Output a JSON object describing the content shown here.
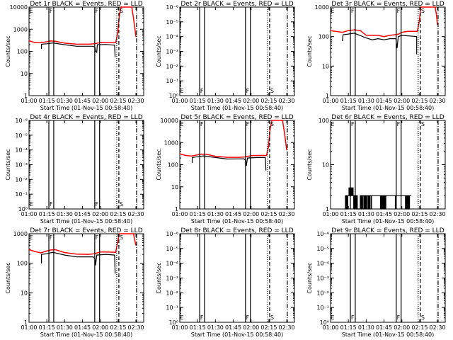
{
  "colors": {
    "events": "#000000",
    "lld": "#ff0000",
    "axes": "#000000",
    "background": "#ffffff"
  },
  "common": {
    "xlabel": "Start Time (01-Nov-15 00:58:40)",
    "ylabel": "Counts/sec",
    "xticks": [
      {
        "min": 0,
        "label": "01:00"
      },
      {
        "min": 15,
        "label": "01:15"
      },
      {
        "min": 30,
        "label": "01:30"
      },
      {
        "min": 45,
        "label": "01:45"
      },
      {
        "min": 60,
        "label": "02:00"
      },
      {
        "min": 75,
        "label": "02:15"
      },
      {
        "min": 90,
        "label": "02:30"
      }
    ],
    "xlim_minutes_after_0100": [
      0,
      96.5
    ],
    "vlines": [
      {
        "min": 16.7,
        "style": "solid"
      },
      {
        "min": 20.8,
        "style": "solid"
      },
      {
        "min": 55.3,
        "style": "solid"
      },
      {
        "min": 59.4,
        "style": "solid"
      },
      {
        "min": 73.8,
        "style": "dotted"
      },
      {
        "min": 75.6,
        "style": "dashed"
      },
      {
        "min": 90.5,
        "style": "dashdot"
      }
    ],
    "markers": [
      {
        "min": 0.3,
        "label": "E"
      },
      {
        "min": 17.2,
        "label": "F"
      },
      {
        "min": 55.8,
        "label": "F"
      },
      {
        "min": 76.2,
        "label": "S"
      }
    ]
  },
  "chart_data": [
    {
      "type": "line",
      "title": "Det 1r BLACK = Events, RED = LLD",
      "ylog_decades": [
        0,
        4
      ],
      "yticks": [
        "1",
        "10",
        "100",
        "1000",
        "10000"
      ],
      "marker_pos": "top",
      "series": [
        {
          "name": "LLD",
          "color": "red",
          "points": [
            [
              0,
              300
            ],
            [
              5,
              250
            ],
            [
              10,
              245
            ],
            [
              15,
              270
            ],
            [
              18,
              295
            ],
            [
              22,
              285
            ],
            [
              30,
              235
            ],
            [
              40,
              210
            ],
            [
              50,
              210
            ],
            [
              55,
              220
            ],
            [
              60,
              250
            ],
            [
              65,
              245
            ],
            [
              73,
              250
            ],
            [
              74.5,
              600
            ],
            [
              76,
              4000
            ],
            [
              77.5,
              10000
            ],
            [
              86.5,
              10000
            ],
            [
              88,
              3000
            ],
            [
              90,
              450
            ]
          ]
        },
        {
          "name": "Events",
          "color": "black",
          "points": [
            [
              10.5,
              130
            ],
            [
              10.5,
              210
            ],
            [
              15,
              220
            ],
            [
              20,
              240
            ],
            [
              30,
              200
            ],
            [
              40,
              170
            ],
            [
              54,
              170
            ],
            [
              55.5,
              150
            ],
            [
              56,
              100
            ],
            [
              57,
              90
            ],
            [
              57.5,
              200
            ],
            [
              65,
              205
            ],
            [
              72,
              190
            ],
            [
              72.5,
              55
            ]
          ]
        }
      ]
    },
    {
      "type": "line",
      "title": "Det 2r BLACK = Events, RED = LLD",
      "ylog_decades": [
        0,
        6
      ],
      "yticks": [
        "10⁰",
        "10⁻¹",
        "10⁻²",
        "10⁻³",
        "10⁻⁴",
        "10⁻⁵",
        "10⁻⁶"
      ],
      "marker_pos": "bottom",
      "series": []
    },
    {
      "type": "line",
      "title": "Det 3r BLACK = Events, RED = LLD",
      "ylog_decades": [
        0,
        3
      ],
      "yticks": [
        "1",
        "10",
        "100",
        "1000"
      ],
      "marker_pos": "top",
      "series": [
        {
          "name": "LLD",
          "color": "red",
          "points": [
            [
              0,
              160
            ],
            [
              10,
              140
            ],
            [
              15,
              160
            ],
            [
              20,
              170
            ],
            [
              25,
              160
            ],
            [
              30,
              110
            ],
            [
              40,
              110
            ],
            [
              45,
              100
            ],
            [
              50,
              110
            ],
            [
              57,
              120
            ],
            [
              60,
              140
            ],
            [
              65,
              150
            ],
            [
              73,
              150
            ],
            [
              74.5,
              300
            ],
            [
              76,
              1000
            ],
            [
              88,
              1000
            ],
            [
              89,
              600
            ],
            [
              90,
              250
            ]
          ]
        },
        {
          "name": "Events",
          "color": "black",
          "points": [
            [
              10,
              70
            ],
            [
              10.5,
              115
            ],
            [
              20,
              130
            ],
            [
              30,
              90
            ],
            [
              35,
              78
            ],
            [
              40,
              85
            ],
            [
              45,
              78
            ],
            [
              50,
              85
            ],
            [
              55,
              85
            ],
            [
              56,
              40
            ],
            [
              57,
              100
            ],
            [
              60,
              110
            ],
            [
              72.5,
              100
            ],
            [
              72.5,
              25
            ]
          ]
        }
      ]
    },
    {
      "type": "line",
      "title": "Det 4r BLACK = Events, RED = LLD",
      "ylog_decades": [
        0,
        6
      ],
      "yticks": [
        "10⁰",
        "10⁻¹",
        "10⁻²",
        "10⁻³",
        "10⁻⁴",
        "10⁻⁵",
        "10⁻⁶"
      ],
      "marker_pos": "bottom",
      "series": []
    },
    {
      "type": "line",
      "title": "Det 5r BLACK = Events, RED = LLD",
      "ylog_decades": [
        0,
        4
      ],
      "yticks": [
        "1",
        "10",
        "100",
        "1000",
        "10000"
      ],
      "marker_pos": "top",
      "series": [
        {
          "name": "LLD",
          "color": "red",
          "points": [
            [
              0,
              310
            ],
            [
              5,
              260
            ],
            [
              10,
              245
            ],
            [
              15,
              280
            ],
            [
              18,
              300
            ],
            [
              22,
              295
            ],
            [
              30,
              240
            ],
            [
              40,
              215
            ],
            [
              50,
              215
            ],
            [
              55,
              225
            ],
            [
              60,
              255
            ],
            [
              65,
              260
            ],
            [
              73,
              260
            ],
            [
              74.5,
              600
            ],
            [
              76,
              4000
            ],
            [
              77.5,
              10000
            ],
            [
              86.5,
              10000
            ],
            [
              88,
              3000
            ],
            [
              90,
              450
            ]
          ]
        },
        {
          "name": "Events",
          "color": "black",
          "points": [
            [
              10.5,
              120
            ],
            [
              10.5,
              210
            ],
            [
              15,
              230
            ],
            [
              20,
              250
            ],
            [
              30,
              210
            ],
            [
              40,
              180
            ],
            [
              54,
              185
            ],
            [
              55.5,
              160
            ],
            [
              56,
              90
            ],
            [
              57,
              200
            ],
            [
              65,
              210
            ],
            [
              72,
              210
            ],
            [
              72.5,
              55
            ]
          ]
        }
      ]
    },
    {
      "type": "line",
      "title": "Det 6r BLACK = Events, RED = LLD",
      "ylog_decades": [
        0,
        2
      ],
      "yticks": [
        "1",
        "10",
        "100"
      ],
      "marker_pos": "top",
      "series": [
        {
          "name": "Events",
          "color": "black",
          "step_start": 12,
          "step": 0.5,
          "values": [
            1,
            2,
            1,
            2,
            1,
            2,
            2,
            3,
            2,
            3,
            2,
            3,
            2,
            3,
            2,
            1,
            2,
            1,
            2,
            1,
            2,
            1,
            1,
            1,
            1,
            1,
            2,
            1,
            2,
            1,
            2,
            2,
            1,
            2,
            1,
            2,
            1,
            2,
            2,
            1,
            2,
            1,
            2,
            2,
            1,
            2,
            2,
            2,
            2,
            2,
            2,
            2,
            2,
            2,
            2,
            2,
            2,
            2,
            2,
            2,
            1,
            2,
            1,
            2,
            1,
            2,
            1,
            2,
            1,
            2,
            2,
            2,
            2,
            2,
            2,
            2,
            2,
            2,
            2,
            2,
            2,
            2,
            2,
            2,
            2,
            1,
            2,
            2,
            2,
            2,
            2,
            2,
            2,
            2,
            2,
            2,
            2,
            2,
            2,
            2,
            2,
            2,
            1,
            2,
            1,
            2,
            1,
            2,
            1,
            2,
            2,
            2
          ]
        }
      ]
    },
    {
      "type": "line",
      "title": "Det 7r BLACK = Events, RED = LLD",
      "ylog_decades": [
        0,
        3
      ],
      "yticks": [
        "1",
        "10",
        "100",
        "1000"
      ],
      "marker_pos": "top",
      "series": [
        {
          "name": "LLD",
          "color": "red",
          "points": [
            [
              0,
              290
            ],
            [
              5,
              250
            ],
            [
              10,
              225
            ],
            [
              15,
              260
            ],
            [
              18,
              280
            ],
            [
              22,
              290
            ],
            [
              30,
              230
            ],
            [
              40,
              205
            ],
            [
              50,
              200
            ],
            [
              55,
              210
            ],
            [
              60,
              240
            ],
            [
              65,
              240
            ],
            [
              73,
              235
            ],
            [
              74.5,
              500
            ],
            [
              76,
              1000
            ],
            [
              88,
              1000
            ],
            [
              89,
              600
            ],
            [
              90,
              400
            ]
          ]
        },
        {
          "name": "Events",
          "color": "black",
          "points": [
            [
              10.5,
              100
            ],
            [
              10.5,
              200
            ],
            [
              15,
              210
            ],
            [
              20,
              235
            ],
            [
              30,
              190
            ],
            [
              40,
              165
            ],
            [
              54,
              165
            ],
            [
              55.5,
              140
            ],
            [
              56,
              85
            ],
            [
              57,
              190
            ],
            [
              65,
              200
            ],
            [
              72,
              190
            ],
            [
              72.5,
              45
            ]
          ]
        }
      ]
    },
    {
      "type": "line",
      "title": "Det 8r BLACK = Events, RED = LLD",
      "ylog_decades": [
        0,
        6
      ],
      "yticks": [
        "10⁰",
        "10⁻¹",
        "10⁻²",
        "10⁻³",
        "10⁻⁴",
        "10⁻⁵",
        "10⁻⁶"
      ],
      "marker_pos": "bottom",
      "series": []
    },
    {
      "type": "line",
      "title": "Det 9r BLACK = Events, RED = LLD",
      "ylog_decades": [
        0,
        6
      ],
      "yticks": [
        "10⁰",
        "10⁻¹",
        "10⁻²",
        "10⁻³",
        "10⁻⁴",
        "10⁻⁵",
        "10⁻⁶"
      ],
      "marker_pos": "bottom",
      "series": []
    }
  ]
}
